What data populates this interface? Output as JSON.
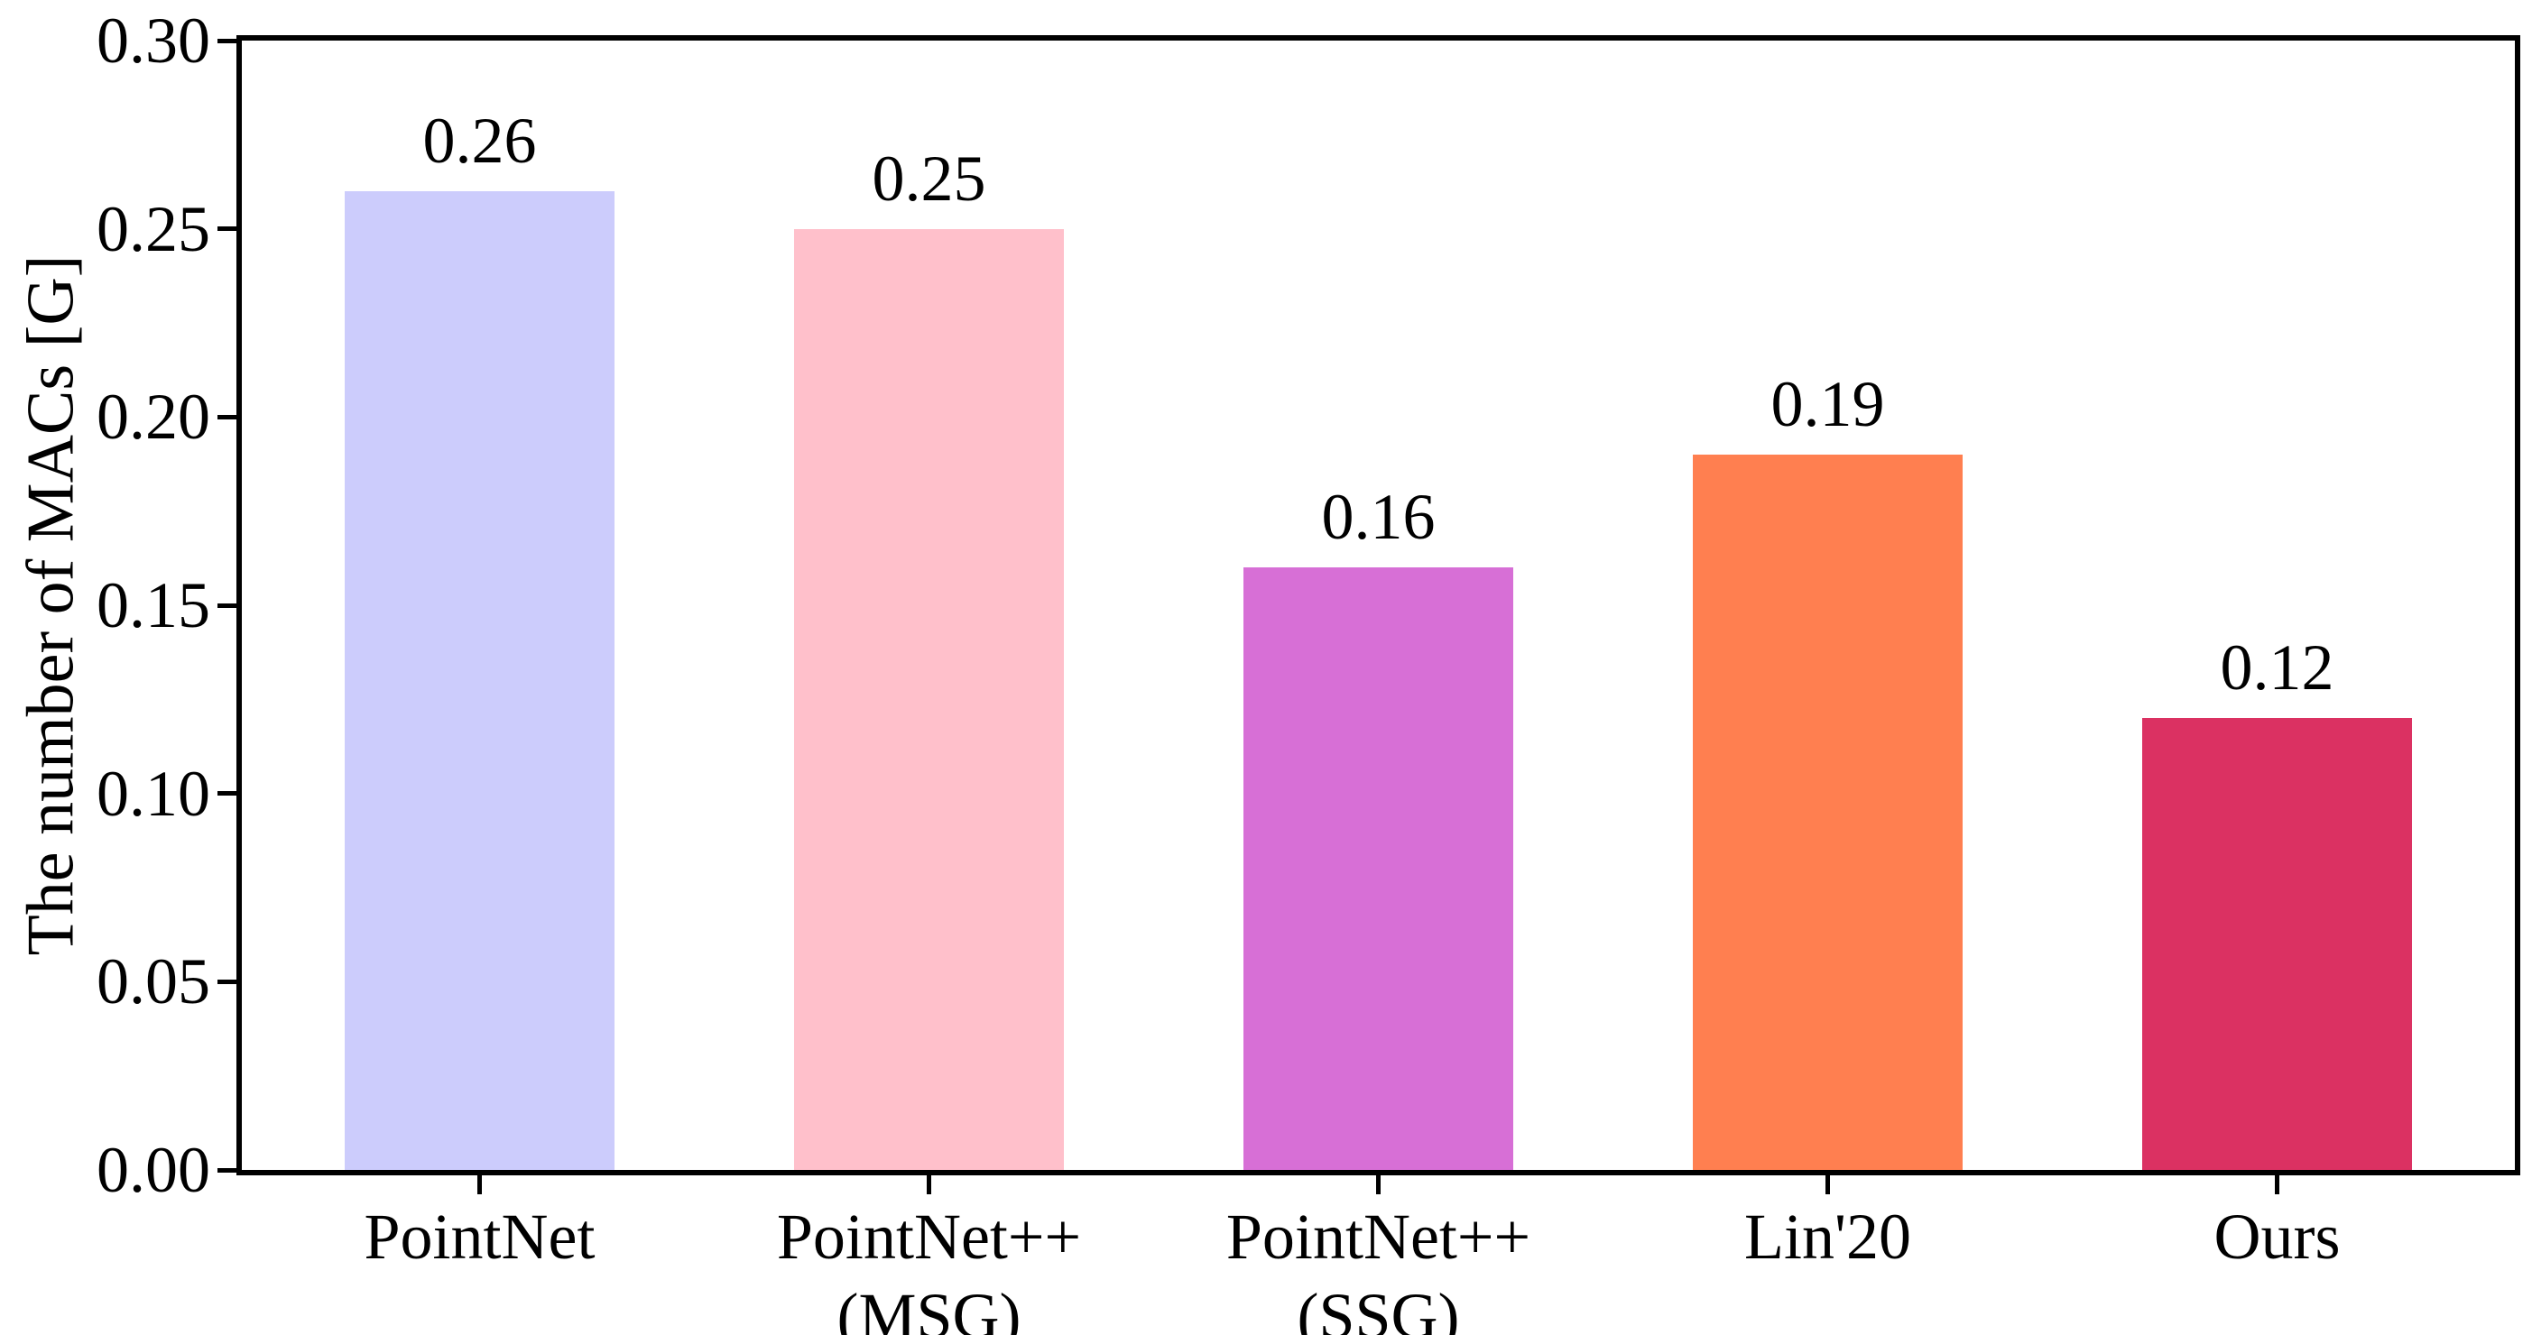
{
  "chart_data": {
    "type": "bar",
    "title": "",
    "xlabel": "",
    "ylabel": "The number of MACs [G]",
    "ylim": [
      0,
      0.3
    ],
    "yticks": [
      "0.00",
      "0.05",
      "0.10",
      "0.15",
      "0.20",
      "0.25",
      "0.30"
    ],
    "ytick_values": [
      0,
      0.05,
      0.1,
      0.15,
      0.2,
      0.25,
      0.3
    ],
    "categories": [
      "PointNet",
      "PointNet++\n(MSG)",
      "PointNet++\n(SSG)",
      "Lin'20",
      "Ours"
    ],
    "values": [
      0.26,
      0.25,
      0.16,
      0.19,
      0.12
    ],
    "value_labels": [
      "0.26",
      "0.25",
      "0.16",
      "0.19",
      "0.12"
    ],
    "bar_colors": [
      "#ccccfc",
      "#ffc0cb",
      "#d76fd6",
      "#ff7f50",
      "#db3162"
    ],
    "grid": false,
    "legend_position": "none",
    "axis_color": "#000000",
    "text_color": "#000000",
    "background_color": "#ffffff"
  }
}
